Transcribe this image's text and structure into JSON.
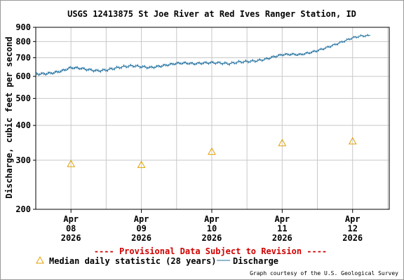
{
  "chart_data": {
    "type": "line",
    "title": "USGS 12413875 St Joe River at Red Ives Ranger Station, ID",
    "ylabel": "Discharge, cubic feet per second",
    "xlabel": "",
    "y_scale": "log",
    "ylim": [
      200,
      900
    ],
    "y_ticks": [
      "200",
      "300",
      "400",
      "500",
      "600",
      "700",
      "800",
      "900"
    ],
    "x_ticks": [
      {
        "date": "2026-04-08",
        "lines": [
          "Apr",
          "08",
          "2026"
        ]
      },
      {
        "date": "2026-04-09",
        "lines": [
          "Apr",
          "09",
          "2026"
        ]
      },
      {
        "date": "2026-04-10",
        "lines": [
          "Apr",
          "10",
          "2026"
        ]
      },
      {
        "date": "2026-04-11",
        "lines": [
          "Apr",
          "11",
          "2026"
        ]
      },
      {
        "date": "2026-04-12",
        "lines": [
          "Apr",
          "12",
          "2026"
        ]
      }
    ],
    "xlim": [
      "2026-04-07T12:00",
      "2026-04-12T12:30"
    ],
    "grid": true,
    "series": [
      {
        "name": "Discharge",
        "color": "#1f6f9f",
        "style": "line",
        "points": [
          [
            "2026-04-07T12:00",
            612
          ],
          [
            "2026-04-07T15:00",
            613
          ],
          [
            "2026-04-07T18:00",
            618
          ],
          [
            "2026-04-07T21:00",
            628
          ],
          [
            "2026-04-08T00:00",
            645
          ],
          [
            "2026-04-08T03:00",
            642
          ],
          [
            "2026-04-08T06:00",
            634
          ],
          [
            "2026-04-08T09:00",
            628
          ],
          [
            "2026-04-08T12:00",
            632
          ],
          [
            "2026-04-08T15:00",
            642
          ],
          [
            "2026-04-08T18:00",
            650
          ],
          [
            "2026-04-08T21:00",
            655
          ],
          [
            "2026-04-09T00:00",
            650
          ],
          [
            "2026-04-09T03:00",
            645
          ],
          [
            "2026-04-09T06:00",
            652
          ],
          [
            "2026-04-09T09:00",
            660
          ],
          [
            "2026-04-09T12:00",
            668
          ],
          [
            "2026-04-09T15:00",
            670
          ],
          [
            "2026-04-09T18:00",
            666
          ],
          [
            "2026-04-09T21:00",
            670
          ],
          [
            "2026-04-10T00:00",
            672
          ],
          [
            "2026-04-10T03:00",
            670
          ],
          [
            "2026-04-10T06:00",
            666
          ],
          [
            "2026-04-10T09:00",
            675
          ],
          [
            "2026-04-10T12:00",
            678
          ],
          [
            "2026-04-10T15:00",
            682
          ],
          [
            "2026-04-10T18:00",
            690
          ],
          [
            "2026-04-10T21:00",
            705
          ],
          [
            "2026-04-11T00:00",
            718
          ],
          [
            "2026-04-11T03:00",
            720
          ],
          [
            "2026-04-11T06:00",
            718
          ],
          [
            "2026-04-11T09:00",
            728
          ],
          [
            "2026-04-11T12:00",
            742
          ],
          [
            "2026-04-11T15:00",
            760
          ],
          [
            "2026-04-11T18:00",
            780
          ],
          [
            "2026-04-11T21:00",
            802
          ],
          [
            "2026-04-12T00:00",
            825
          ],
          [
            "2026-04-12T03:00",
            838
          ],
          [
            "2026-04-12T06:00",
            840
          ]
        ]
      },
      {
        "name": "Median daily statistic (28 years)",
        "color": "#e0a000",
        "style": "triangle",
        "points": [
          [
            "2026-04-08T00:00",
            291
          ],
          [
            "2026-04-09T00:00",
            289
          ],
          [
            "2026-04-10T00:00",
            322
          ],
          [
            "2026-04-11T00:00",
            346
          ],
          [
            "2026-04-12T00:00",
            351
          ]
        ]
      }
    ]
  },
  "provisional_notice": "---- Provisional Data Subject to Revision ----",
  "legend": {
    "median_label": "Median daily statistic (28 years)",
    "discharge_label": "Discharge"
  },
  "credit": "Graph courtesy of the U.S. Geological Survey"
}
